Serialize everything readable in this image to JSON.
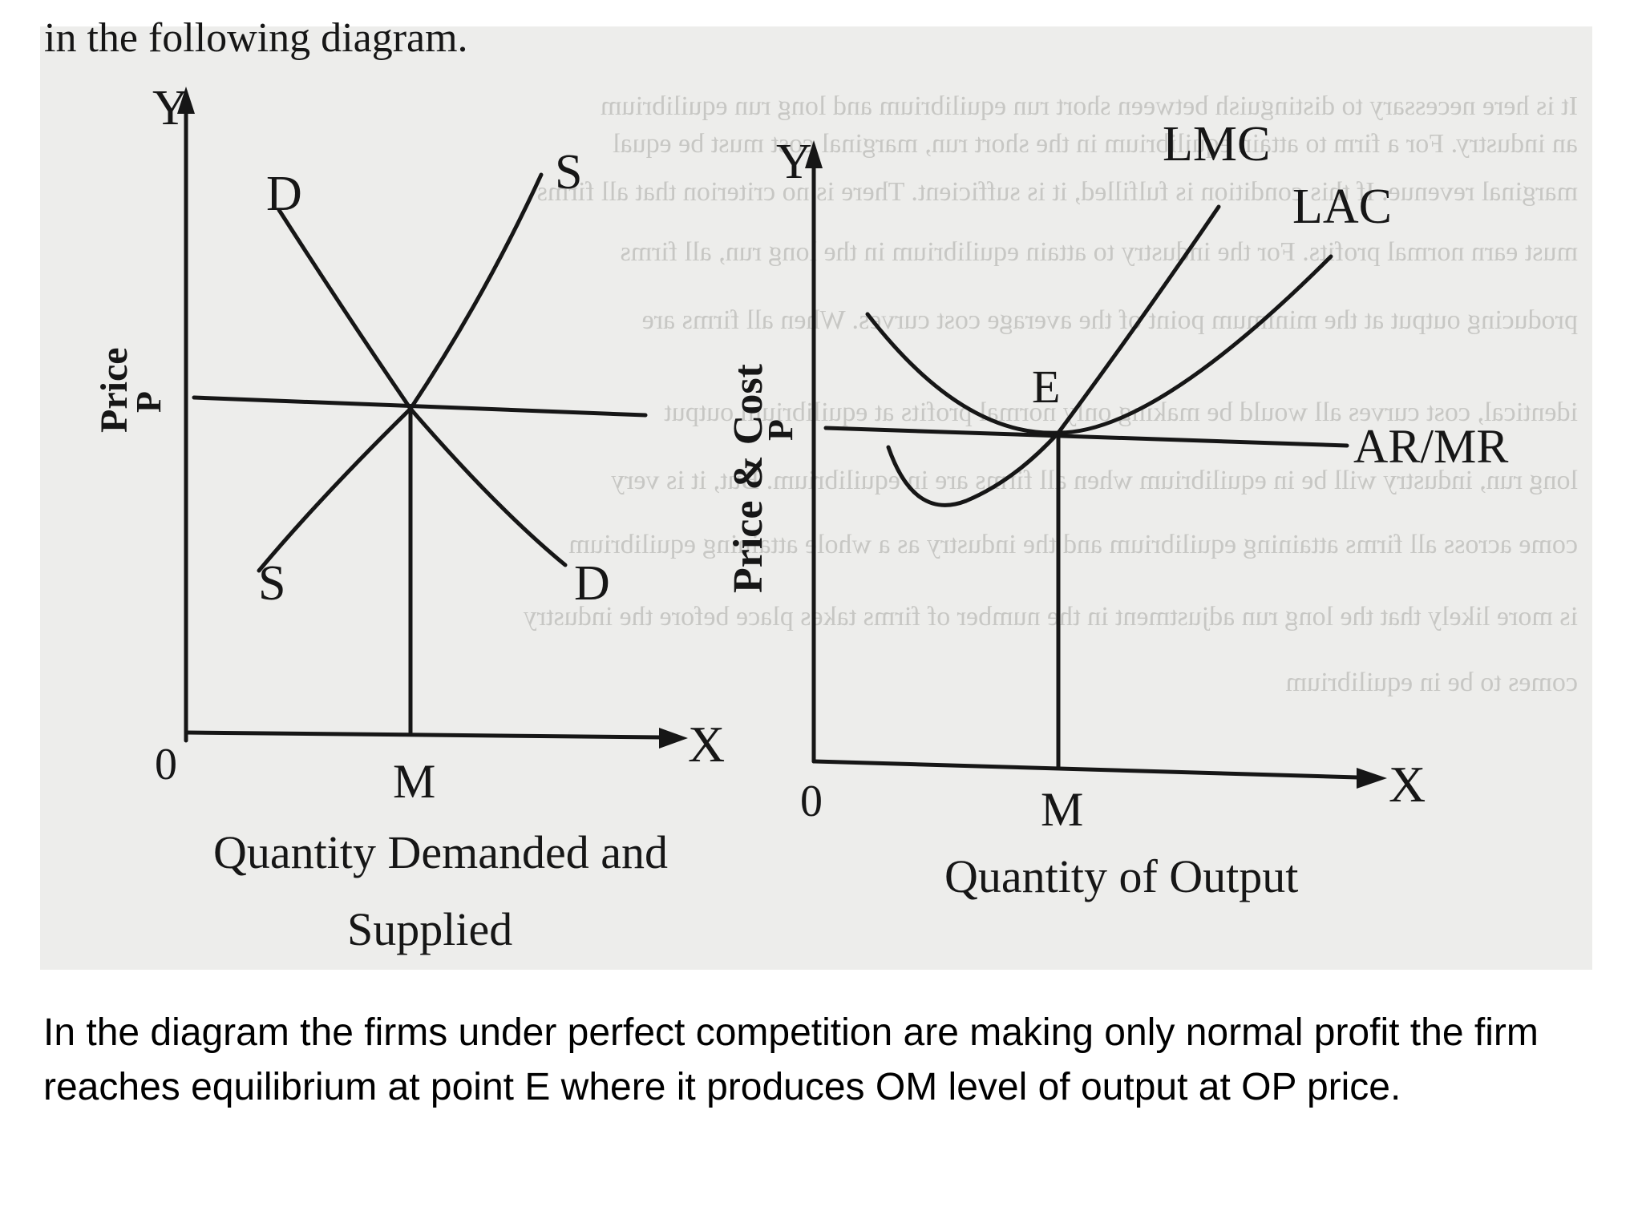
{
  "header_fragment": "in the following diagram.",
  "left_panel": {
    "y_axis_letter": "Y",
    "x_axis_letter": "X",
    "origin": "0",
    "y_axis_label": "Price",
    "price_mark": "P",
    "demand_label": "D",
    "supply_label": "S",
    "quantity_mark": "M",
    "x_axis_label_line1": "Quantity Demanded and",
    "x_axis_label_line2": "Supplied"
  },
  "right_panel": {
    "y_axis_letter": "Y",
    "x_axis_letter": "X",
    "origin": "0",
    "y_axis_label": "Price & Cost",
    "price_mark": "P",
    "lmc_label": "LMC",
    "lac_label": "LAC",
    "equilibrium_label": "E",
    "ar_mr_label": "AR/MR",
    "quantity_mark": "M",
    "x_axis_label": "Quantity of Output"
  },
  "background_text_lines": [
    "It is here necessary to distinguish between short run equilibrium and long run equilibrium",
    "an industry. For a firm to attain equilibrium in the short run, marginal cost must be equal",
    "marginal revenue. If this condition is fulfilled, it is sufficient. There is no criterion that all firms",
    "must earn normal profits. For the industry to attain equilibrium in the long run, all firms",
    "producing output at the minimum point of the average cost curves. When all firms are",
    "identical, cost curves all would be making only normal profits at equilibrium output",
    "long run, industry will be in equilibrium when all firms are in equilibrium. But, it is very",
    "come across all firms attaining equilibrium and the industry as a whole attaining equilibrium",
    "is more likely that the long run adjustment in the number of firms takes place before the industry",
    "comes to be in equilibrium"
  ],
  "caption": "In the diagram the firms under perfect competition are making only normal profit the firm reaches equilibrium at point E where it produces OM level of output at OP price."
}
